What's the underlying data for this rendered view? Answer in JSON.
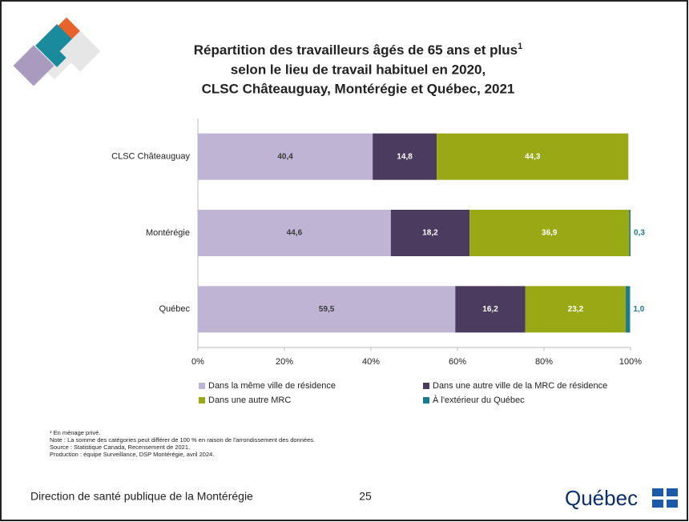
{
  "chart_data": {
    "type": "bar",
    "orientation": "horizontal",
    "stacked": true,
    "title": [
      "Répartition des travailleurs âgés de 65 ans et plus",
      "selon le lieu de travail habituel en 2020,",
      "CLSC Châteauguay, Montérégie et Québec, 2021"
    ],
    "title_superscript": "1",
    "categories": [
      "CLSC Châteauguay",
      "Montérégie",
      "Québec"
    ],
    "series": [
      {
        "name": "Dans la même ville de résidence",
        "color": "#c0b4d5",
        "values": [
          40.4,
          44.6,
          59.5
        ],
        "value_labels": [
          "40,4",
          "44,6",
          "59,5"
        ]
      },
      {
        "name": "Dans une autre ville de la MRC de résidence",
        "color": "#4b3b5f",
        "values": [
          14.8,
          18.2,
          16.2
        ],
        "value_labels": [
          "14,8",
          "18,2",
          "16,2"
        ]
      },
      {
        "name": "Dans une autre MRC",
        "color": "#99a915",
        "values": [
          44.3,
          36.9,
          23.2
        ],
        "value_labels": [
          "44,3",
          "36,9",
          "23,2"
        ]
      },
      {
        "name": "À l'extérieur du Québec",
        "color": "#1b7b8d",
        "values": [
          null,
          0.3,
          1.0
        ],
        "value_labels": [
          null,
          "0,3",
          "1,0"
        ]
      }
    ],
    "xlim": [
      0,
      100
    ],
    "xticks": [
      {
        "value": 0,
        "label": "0%"
      },
      {
        "value": 20,
        "label": "20%"
      },
      {
        "value": 40,
        "label": "40%"
      },
      {
        "value": 60,
        "label": "60%"
      },
      {
        "value": 80,
        "label": "80%"
      },
      {
        "value": 100,
        "label": "100%"
      }
    ],
    "legend": "bottom",
    "notes": [
      "¹ En ménage privé.",
      "Note : La somme des catégories peut différer de 100 % en raison de l'arrondissement des données.",
      "Source : Statistique Canada, Recensement de 2021.",
      "Production : équipe Surveillance, DSP Montérégie, avril 2024."
    ]
  },
  "footer": {
    "organization": "Direction de santé publique de la Montérégie",
    "page": "25",
    "logo": "Québec"
  }
}
